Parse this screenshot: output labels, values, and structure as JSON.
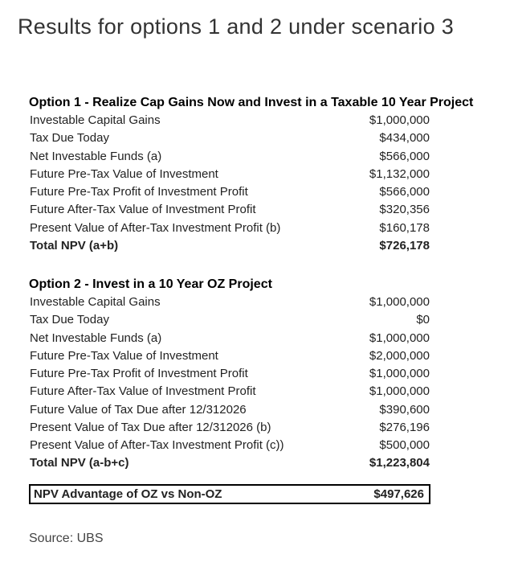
{
  "colors": {
    "background": "#ffffff",
    "text": "#222222",
    "title": "#333333",
    "box_border": "#000000"
  },
  "title": "Results for options 1 and 2 under scenario 3",
  "option1": {
    "heading": "Option 1 - Realize Cap Gains Now and Invest in a Taxable 10 Year Project",
    "rows": [
      {
        "label": "Investable Capital Gains",
        "value": "$1,000,000"
      },
      {
        "label": "Tax Due Today",
        "value": "$434,000"
      },
      {
        "label": "Net Investable Funds (a)",
        "value": "$566,000"
      },
      {
        "label": "Future Pre-Tax Value of Investment",
        "value": "$1,132,000"
      },
      {
        "label": "Future Pre-Tax Profit of Investment Profit",
        "value": "$566,000"
      },
      {
        "label": "Future After-Tax Value of Investment Profit",
        "value": "$320,356"
      },
      {
        "label": "Present Value of After-Tax Investment Profit (b)",
        "value": "$160,178"
      }
    ],
    "total_label": "Total NPV (a+b)",
    "total_value": "$726,178"
  },
  "option2": {
    "heading": "Option 2 - Invest in a 10 Year OZ Project",
    "rows": [
      {
        "label": "Investable Capital Gains",
        "value": "$1,000,000"
      },
      {
        "label": "Tax Due Today",
        "value": "$0"
      },
      {
        "label": "Net Investable Funds (a)",
        "value": "$1,000,000"
      },
      {
        "label": "Future Pre-Tax Value of Investment",
        "value": "$2,000,000"
      },
      {
        "label": "Future Pre-Tax Profit of Investment Profit",
        "value": "$1,000,000"
      },
      {
        "label": "Future After-Tax Value of Investment Profit",
        "value": "$1,000,000"
      },
      {
        "label": "Future Value of Tax Due after 12/312026",
        "value": "$390,600"
      },
      {
        "label": "Present Value of Tax Due after 12/312026 (b)",
        "value": "$276,196"
      },
      {
        "label": "Present Value of After-Tax Investment Profit (c))",
        "value": "$500,000"
      }
    ],
    "total_label": "Total NPV (a-b+c)",
    "total_value": "$1,223,804"
  },
  "advantage": {
    "label": "NPV Advantage of OZ vs Non-OZ",
    "value": "$497,626"
  },
  "source": "Source: UBS"
}
